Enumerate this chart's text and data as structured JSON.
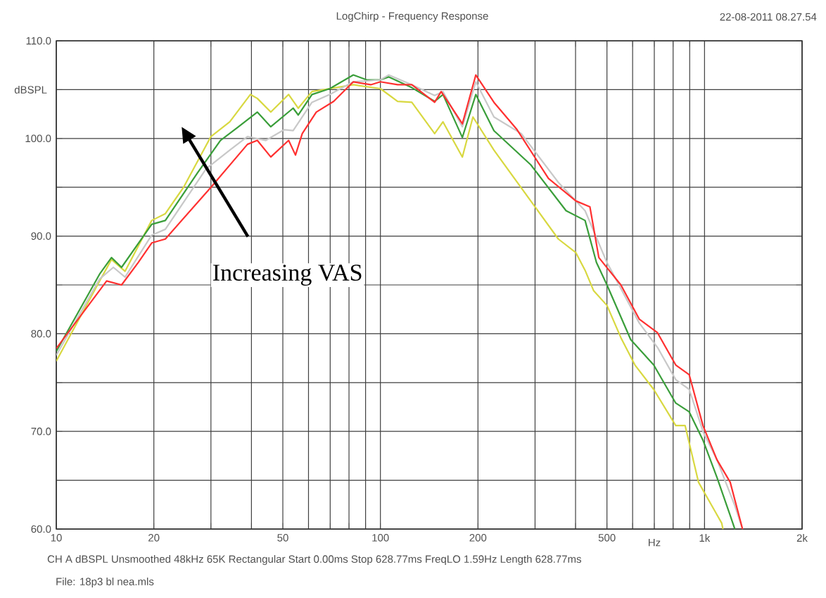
{
  "chart_data": {
    "type": "line",
    "title": "LogChirp - Frequency Response",
    "xlabel": "Hz",
    "ylabel": "dBSPL",
    "annotations": [
      "22-08-2011 08.27.54",
      "Increasing VAS",
      "CH A   dBSPL   Unsmoothed   48kHz   65K   Rectangular   Start 0.00ms   Stop 628.77ms   FreqLO 1.59Hz   Length 628.77ms",
      "File: 18p3 bl nea.mls"
    ],
    "log": "x",
    "grid": true,
    "marker": "none",
    "line_style": "solid",
    "xlim": [
      10,
      2000
    ],
    "ylim": [
      60,
      110
    ],
    "xticks": [
      10,
      20,
      {
        "value": 30,
        "label": null
      },
      {
        "value": 40,
        "label": null
      },
      50,
      {
        "value": 60,
        "label": null
      },
      {
        "value": 70,
        "label": null
      },
      {
        "value": 80,
        "label": null
      },
      {
        "value": 90,
        "label": null
      },
      100,
      200,
      {
        "value": 300,
        "label": null
      },
      {
        "value": 400,
        "label": null
      },
      500,
      {
        "value": 600,
        "label": null
      },
      {
        "value": 700,
        "label": null
      },
      {
        "value": 800,
        "label": null
      },
      {
        "value": 900,
        "label": null
      },
      {
        "value": 1000,
        "label": "1k"
      },
      {
        "value": 2000,
        "label": "2k"
      }
    ],
    "yticks": [
      {
        "value": 60,
        "label": "60.0"
      },
      {
        "value": 65,
        "label": null
      },
      {
        "value": 70,
        "label": "70.0"
      },
      {
        "value": 75,
        "label": null
      },
      {
        "value": 80,
        "label": "80.0"
      },
      {
        "value": 85,
        "label": null
      },
      {
        "value": 90,
        "label": "90.0"
      },
      {
        "value": 95,
        "label": null
      },
      {
        "value": 100,
        "label": "100.0"
      },
      {
        "value": 105,
        "label": null
      },
      {
        "value": 110,
        "label": "110.0"
      }
    ],
    "series": [
      {
        "color": "#d8d840",
        "x": [
          10,
          13.6,
          14.8,
          16.3,
          19.7,
          21.7,
          24.7,
          30,
          34.3,
          39.7,
          41.7,
          45.9,
          52.1,
          55.8,
          61.5,
          69.8,
          82.5,
          100,
          113,
          125,
          147,
          156,
          179,
          193,
          224,
          291,
          354,
          401,
          428,
          455,
          500,
          552,
          610,
          697,
          815,
          871,
          958,
          1130,
          1140
        ],
        "values": [
          77.2,
          85.4,
          87.6,
          86.4,
          91.6,
          92.3,
          95.0,
          100.2,
          101.7,
          104.5,
          104.1,
          102.7,
          104.5,
          103.1,
          104.8,
          105.1,
          105.5,
          105.1,
          103.8,
          103.7,
          100.5,
          101.7,
          98.1,
          102.2,
          98.8,
          93.6,
          89.7,
          88.3,
          86.5,
          84.4,
          82.9,
          79.6,
          76.8,
          74.3,
          70.6,
          70.6,
          64.8,
          60.6,
          60.0
        ]
      },
      {
        "color": "#3a9e3a",
        "x": [
          10,
          13.6,
          14.8,
          15.9,
          19.7,
          21.7,
          27.3,
          32.1,
          36.5,
          41.7,
          45.9,
          53.8,
          55.8,
          61.5,
          69.8,
          82.5,
          90.7,
          100,
          106,
          125,
          147,
          156,
          179,
          197,
          224,
          291,
          374,
          428,
          464,
          500,
          592,
          697,
          815,
          897,
          989,
          1092,
          1200,
          1240
        ],
        "values": [
          78.2,
          86.1,
          87.8,
          86.8,
          91.2,
          91.6,
          96.5,
          99.8,
          101.2,
          102.7,
          101.2,
          103.1,
          102.4,
          104.5,
          105.1,
          106.5,
          106.0,
          106.0,
          106.3,
          105.2,
          103.8,
          104.5,
          100.1,
          104.5,
          100.8,
          97.3,
          92.6,
          91.6,
          87.3,
          85.0,
          79.4,
          76.8,
          72.9,
          72.0,
          69.1,
          65.3,
          61.4,
          60.0
        ]
      },
      {
        "color": "#c8c8c8",
        "x": [
          10,
          13.6,
          15,
          16.3,
          19.7,
          21.7,
          29,
          34.3,
          38.9,
          44.3,
          50.5,
          53.8,
          61.5,
          69.8,
          82.5,
          100,
          106,
          125,
          147,
          156,
          179,
          197,
          224,
          272,
          354,
          428,
          500,
          629,
          716,
          815,
          897,
          989,
          1092,
          1240,
          1310
        ],
        "values": [
          77.8,
          85.6,
          86.8,
          85.8,
          90.1,
          90.7,
          96.9,
          98.8,
          100.2,
          99.8,
          100.9,
          100.8,
          103.7,
          104.5,
          105.8,
          106.0,
          106.5,
          105.5,
          104.4,
          104.8,
          101.2,
          105.8,
          102.2,
          100.5,
          95.5,
          92.6,
          87.3,
          81.1,
          78.6,
          75.3,
          74.3,
          70.0,
          67.1,
          62.4,
          60.0
        ]
      },
      {
        "color": "#ff3030",
        "x": [
          10,
          14.3,
          15.9,
          17.9,
          19.7,
          21.7,
          30,
          38.9,
          41.7,
          45.9,
          52.1,
          54.7,
          57.4,
          63.4,
          71.8,
          82.5,
          93.4,
          100,
          113,
          125,
          147,
          154,
          179,
          197,
          224,
          264,
          330,
          401,
          443,
          472,
          552,
          629,
          716,
          815,
          897,
          989,
          1092,
          1200,
          1310
        ],
        "values": [
          78.5,
          85.4,
          85.0,
          87.3,
          89.3,
          89.7,
          95.0,
          99.4,
          99.8,
          98.1,
          99.8,
          98.3,
          100.5,
          102.7,
          103.8,
          105.8,
          105.5,
          105.8,
          105.5,
          105.5,
          103.7,
          104.8,
          101.5,
          106.5,
          103.7,
          100.9,
          95.9,
          93.6,
          93.0,
          87.8,
          85.0,
          81.5,
          80.1,
          76.8,
          75.8,
          70.6,
          67.1,
          64.8,
          60.0
        ]
      }
    ]
  }
}
